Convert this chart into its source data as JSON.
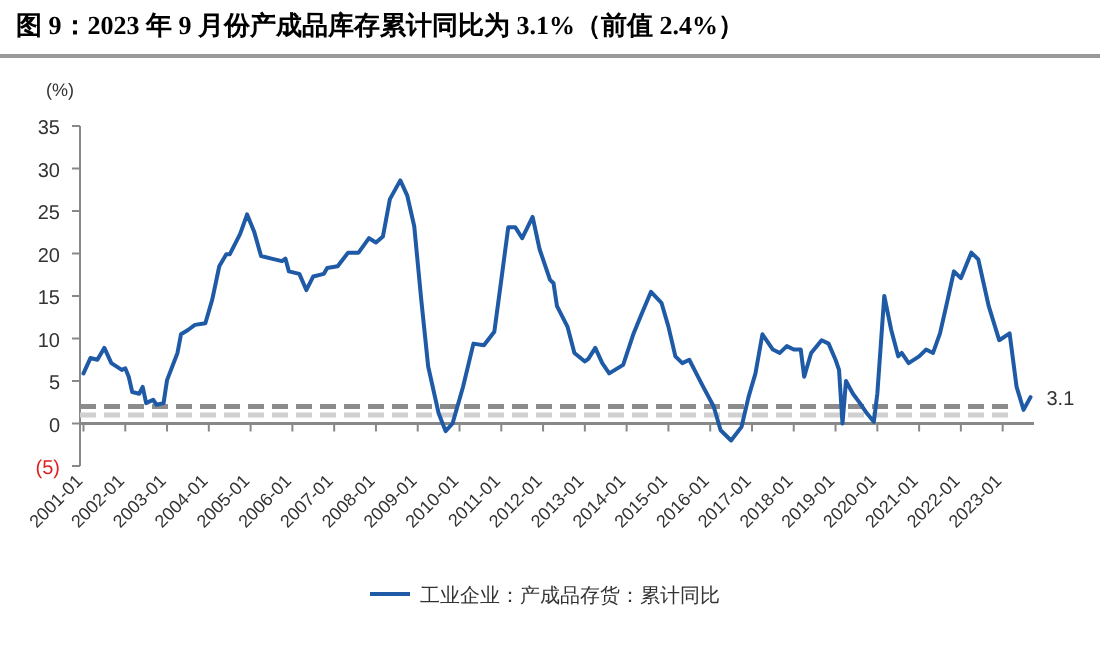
{
  "chart_data": {
    "type": "line",
    "title": "图 9：2023 年 9 月份产成品库存累计同比为 3.1%（前值 2.4%）",
    "ylabel": "(%)",
    "x": [
      "2001-01",
      "2001-03",
      "2001-05",
      "2001-07",
      "2001-09",
      "2001-12",
      "2002-01",
      "2002-02",
      "2002-03",
      "2002-05",
      "2002-06",
      "2002-07",
      "2002-09",
      "2002-10",
      "2002-12",
      "2003-01",
      "2003-04",
      "2003-05",
      "2003-07",
      "2003-09",
      "2003-12",
      "2004-02",
      "2004-04",
      "2004-06",
      "2004-07",
      "2004-10",
      "2004-12",
      "2005-02",
      "2005-04",
      "2005-07",
      "2005-10",
      "2005-11",
      "2005-12",
      "2006-03",
      "2006-05",
      "2006-07",
      "2006-10",
      "2006-11",
      "2007-02",
      "2007-05",
      "2007-08",
      "2007-11",
      "2008-01",
      "2008-03",
      "2008-05",
      "2008-08",
      "2008-10",
      "2008-12",
      "2009-02",
      "2009-04",
      "2009-07",
      "2009-09",
      "2009-11",
      "2010-02",
      "2010-05",
      "2010-08",
      "2010-11",
      "2011-01",
      "2011-03",
      "2011-05",
      "2011-07",
      "2011-10",
      "2011-12",
      "2012-03",
      "2012-04",
      "2012-05",
      "2012-08",
      "2012-10",
      "2013-01",
      "2013-02",
      "2013-04",
      "2013-06",
      "2013-08",
      "2013-12",
      "2014-03",
      "2014-05",
      "2014-08",
      "2014-11",
      "2015-01",
      "2015-03",
      "2015-05",
      "2015-07",
      "2015-09",
      "2015-11",
      "2016-02",
      "2016-04",
      "2016-07",
      "2016-10",
      "2016-12",
      "2017-02",
      "2017-04",
      "2017-07",
      "2017-09",
      "2017-11",
      "2018-01",
      "2018-03",
      "2018-04",
      "2018-06",
      "2018-09",
      "2018-11",
      "2019-01",
      "2019-02",
      "2019-03",
      "2019-04",
      "2019-06",
      "2019-08",
      "2019-10",
      "2019-12",
      "2020-01",
      "2020-03",
      "2020-05",
      "2020-07",
      "2020-08",
      "2020-10",
      "2021-01",
      "2021-03",
      "2021-05",
      "2021-07",
      "2021-09",
      "2021-11",
      "2022-01",
      "2022-04",
      "2022-06",
      "2022-09",
      "2022-12",
      "2023-03",
      "2023-05",
      "2023-07",
      "2023-09"
    ],
    "series": [
      {
        "name": "工业企业：产成品存货：累计同比",
        "color": "#1f5aa6",
        "values": [
          5.9,
          7.7,
          7.5,
          8.9,
          7.1,
          6.3,
          6.5,
          5.5,
          3.7,
          3.5,
          4.3,
          2.4,
          2.8,
          2.2,
          2.4,
          5.1,
          8.3,
          10.5,
          11.0,
          11.6,
          11.8,
          14.6,
          18.5,
          19.9,
          19.9,
          22.3,
          24.6,
          22.6,
          19.7,
          19.4,
          19.1,
          19.4,
          17.9,
          17.6,
          15.7,
          17.3,
          17.6,
          18.3,
          18.5,
          20.1,
          20.1,
          21.8,
          21.3,
          22.0,
          26.4,
          28.6,
          26.8,
          23.2,
          14.6,
          6.7,
          1.2,
          -0.9,
          0.0,
          4.3,
          9.4,
          9.2,
          10.8,
          16.9,
          23.1,
          23.1,
          21.8,
          24.3,
          20.5,
          16.9,
          16.5,
          13.8,
          11.4,
          8.3,
          7.3,
          7.6,
          8.9,
          7.1,
          5.9,
          6.9,
          10.6,
          12.6,
          15.5,
          14.2,
          11.4,
          7.9,
          7.1,
          7.5,
          5.9,
          4.3,
          2.0,
          -0.8,
          -2.0,
          -0.4,
          3.1,
          5.9,
          10.5,
          8.7,
          8.3,
          9.1,
          8.7,
          8.7,
          5.5,
          8.3,
          9.8,
          9.4,
          7.5,
          6.3,
          0.0,
          5.0,
          3.5,
          2.4,
          1.2,
          0.2,
          3.5,
          15.0,
          11.0,
          7.9,
          8.3,
          7.1,
          7.9,
          8.7,
          8.3,
          10.6,
          14.2,
          17.9,
          17.1,
          20.1,
          19.3,
          13.8,
          9.8,
          10.6,
          4.3,
          1.6,
          3.1
        ]
      }
    ],
    "xlim": [
      "2000-12",
      "2023-10"
    ],
    "xticks": [
      "2001-01",
      "2002-01",
      "2003-01",
      "2004-01",
      "2005-01",
      "2006-01",
      "2007-01",
      "2008-01",
      "2009-01",
      "2010-01",
      "2011-01",
      "2012-01",
      "2013-01",
      "2014-01",
      "2015-01",
      "2016-01",
      "2017-01",
      "2018-01",
      "2019-01",
      "2020-01",
      "2021-01",
      "2022-01",
      "2023-01"
    ],
    "ylim": [
      -5,
      35
    ],
    "yticks": [
      {
        "value": -5,
        "label": "(5)"
      },
      0,
      5,
      10,
      15,
      20,
      25,
      30,
      35
    ],
    "ref_lines": [
      {
        "axis": "y",
        "value": 2,
        "color": "#8c8c8c",
        "line_style": "dashed"
      },
      {
        "axis": "y",
        "value": 1,
        "color": "#d0d0d0",
        "line_style": "dashed"
      }
    ],
    "annotations": [
      {
        "text": "3.1",
        "x": "2023-09",
        "y": 3.1
      }
    ],
    "legend": "bottom"
  }
}
